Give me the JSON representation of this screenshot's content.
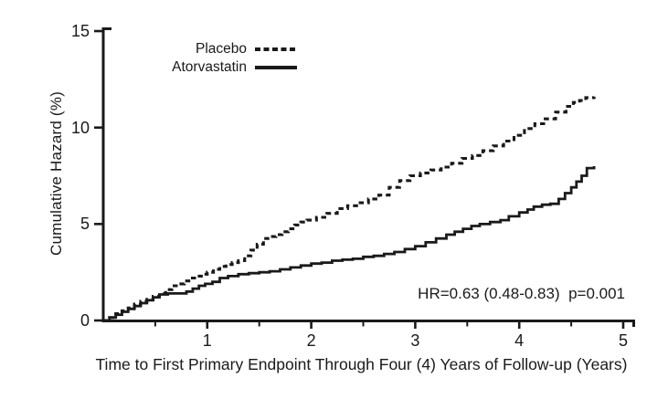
{
  "figure": {
    "background": "#ffffff",
    "ink_color": "#1a1a1a"
  },
  "chart_data": {
    "type": "line",
    "subtype": "step-cumulative-hazard",
    "title": "",
    "xlabel": "Time to First Primary Endpoint Through Four (4) Years of Follow-up (Years)",
    "ylabel": "Cumulative Hazard (%)",
    "xlim": [
      0,
      5
    ],
    "ylim": [
      0,
      15
    ],
    "x_major_ticks": [
      1,
      2,
      3,
      4,
      5
    ],
    "x_minor_ticks": [
      0.5,
      1.5,
      2.5,
      3.5,
      4.5
    ],
    "y_ticks": [
      0,
      5,
      10,
      15
    ],
    "grid": false,
    "legend_position": "inside-top-left",
    "annotation": "HR=0.63 (0.48-0.83)  p=0.001",
    "series": [
      {
        "name": "Placebo",
        "line_style": "dashed",
        "points": [
          [
            0,
            0
          ],
          [
            0.06,
            0.15
          ],
          [
            0.12,
            0.35
          ],
          [
            0.18,
            0.5
          ],
          [
            0.24,
            0.65
          ],
          [
            0.3,
            0.85
          ],
          [
            0.36,
            1.0
          ],
          [
            0.42,
            1.1
          ],
          [
            0.48,
            1.25
          ],
          [
            0.54,
            1.4
          ],
          [
            0.6,
            1.6
          ],
          [
            0.66,
            1.8
          ],
          [
            0.72,
            1.9
          ],
          [
            0.78,
            2.05
          ],
          [
            0.84,
            2.2
          ],
          [
            0.9,
            2.3
          ],
          [
            0.96,
            2.4
          ],
          [
            1.0,
            2.5
          ],
          [
            1.06,
            2.65
          ],
          [
            1.12,
            2.8
          ],
          [
            1.18,
            2.9
          ],
          [
            1.24,
            3.0
          ],
          [
            1.3,
            3.1
          ],
          [
            1.36,
            3.35
          ],
          [
            1.42,
            3.65
          ],
          [
            1.48,
            3.95
          ],
          [
            1.54,
            4.25
          ],
          [
            1.6,
            4.35
          ],
          [
            1.66,
            4.45
          ],
          [
            1.72,
            4.6
          ],
          [
            1.78,
            4.75
          ],
          [
            1.84,
            4.95
          ],
          [
            1.9,
            5.1
          ],
          [
            1.96,
            5.2
          ],
          [
            2.05,
            5.35
          ],
          [
            2.15,
            5.55
          ],
          [
            2.25,
            5.8
          ],
          [
            2.35,
            5.95
          ],
          [
            2.45,
            6.1
          ],
          [
            2.55,
            6.3
          ],
          [
            2.65,
            6.5
          ],
          [
            2.75,
            6.9
          ],
          [
            2.85,
            7.25
          ],
          [
            2.95,
            7.5
          ],
          [
            3.05,
            7.65
          ],
          [
            3.15,
            7.8
          ],
          [
            3.25,
            7.95
          ],
          [
            3.35,
            8.15
          ],
          [
            3.45,
            8.4
          ],
          [
            3.55,
            8.55
          ],
          [
            3.65,
            8.8
          ],
          [
            3.75,
            9.05
          ],
          [
            3.85,
            9.3
          ],
          [
            3.95,
            9.6
          ],
          [
            4.05,
            9.95
          ],
          [
            4.15,
            10.2
          ],
          [
            4.25,
            10.45
          ],
          [
            4.35,
            10.8
          ],
          [
            4.45,
            11.1
          ],
          [
            4.52,
            11.3
          ],
          [
            4.58,
            11.4
          ],
          [
            4.64,
            11.55
          ],
          [
            4.72,
            11.6
          ]
        ]
      },
      {
        "name": "Atorvastatin",
        "line_style": "solid",
        "points": [
          [
            0,
            0
          ],
          [
            0.06,
            0.15
          ],
          [
            0.12,
            0.3
          ],
          [
            0.18,
            0.45
          ],
          [
            0.24,
            0.6
          ],
          [
            0.3,
            0.75
          ],
          [
            0.36,
            0.9
          ],
          [
            0.42,
            1.05
          ],
          [
            0.48,
            1.2
          ],
          [
            0.54,
            1.35
          ],
          [
            0.62,
            1.4
          ],
          [
            0.72,
            1.4
          ],
          [
            0.8,
            1.5
          ],
          [
            0.86,
            1.65
          ],
          [
            0.92,
            1.8
          ],
          [
            0.98,
            1.9
          ],
          [
            1.05,
            2.0
          ],
          [
            1.12,
            2.2
          ],
          [
            1.2,
            2.3
          ],
          [
            1.3,
            2.4
          ],
          [
            1.4,
            2.45
          ],
          [
            1.5,
            2.5
          ],
          [
            1.6,
            2.55
          ],
          [
            1.7,
            2.65
          ],
          [
            1.8,
            2.75
          ],
          [
            1.9,
            2.85
          ],
          [
            2.0,
            2.95
          ],
          [
            2.1,
            3.0
          ],
          [
            2.2,
            3.1
          ],
          [
            2.3,
            3.15
          ],
          [
            2.4,
            3.2
          ],
          [
            2.5,
            3.3
          ],
          [
            2.6,
            3.35
          ],
          [
            2.7,
            3.45
          ],
          [
            2.8,
            3.55
          ],
          [
            2.9,
            3.7
          ],
          [
            3.0,
            3.85
          ],
          [
            3.1,
            4.05
          ],
          [
            3.2,
            4.25
          ],
          [
            3.3,
            4.45
          ],
          [
            3.38,
            4.6
          ],
          [
            3.46,
            4.75
          ],
          [
            3.54,
            4.9
          ],
          [
            3.62,
            5.0
          ],
          [
            3.72,
            5.1
          ],
          [
            3.82,
            5.2
          ],
          [
            3.9,
            5.4
          ],
          [
            4.0,
            5.6
          ],
          [
            4.08,
            5.75
          ],
          [
            4.14,
            5.9
          ],
          [
            4.22,
            6.0
          ],
          [
            4.3,
            6.05
          ],
          [
            4.38,
            6.3
          ],
          [
            4.44,
            6.6
          ],
          [
            4.5,
            6.9
          ],
          [
            4.55,
            7.2
          ],
          [
            4.6,
            7.5
          ],
          [
            4.65,
            7.9
          ],
          [
            4.72,
            8.0
          ]
        ]
      }
    ]
  },
  "legend": {
    "items": [
      {
        "label": "Placebo",
        "style": "dashed"
      },
      {
        "label": "Atorvastatin",
        "style": "solid"
      }
    ]
  }
}
